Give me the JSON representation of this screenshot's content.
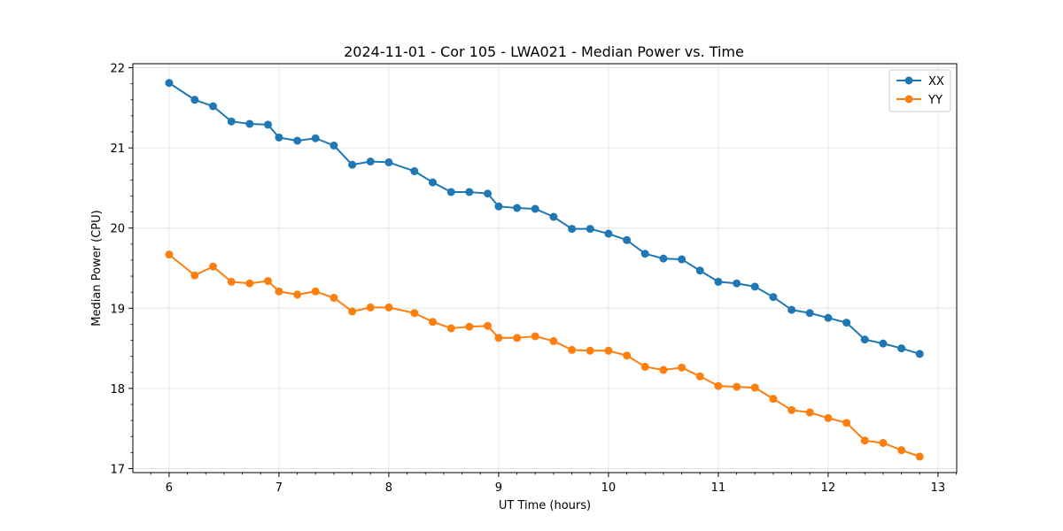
{
  "chart_data": {
    "type": "line",
    "title": "2024-11-01 - Cor 105 - LWA021 - Median Power vs. Time",
    "xlabel": "UT Time (hours)",
    "ylabel": "Median Power (CPU)",
    "xlim": [
      5.67,
      13.17
    ],
    "ylim": [
      16.95,
      22.05
    ],
    "xticks": [
      6,
      7,
      8,
      9,
      10,
      11,
      12,
      13
    ],
    "yticks": [
      17,
      18,
      19,
      20,
      21,
      22
    ],
    "grid": true,
    "legend_position": "top-right",
    "x": [
      6.0,
      6.233,
      6.4,
      6.567,
      6.733,
      6.9,
      7.0,
      7.167,
      7.333,
      7.5,
      7.667,
      7.833,
      8.0,
      8.233,
      8.4,
      8.567,
      8.733,
      8.9,
      9.0,
      9.167,
      9.333,
      9.5,
      9.667,
      9.833,
      10.0,
      10.167,
      10.333,
      10.5,
      10.667,
      10.833,
      11.0,
      11.167,
      11.333,
      11.5,
      11.667,
      11.833,
      12.0,
      12.167,
      12.333,
      12.5,
      12.667,
      12.833
    ],
    "series": [
      {
        "name": "XX",
        "color": "#1f77b4",
        "values": [
          21.81,
          21.6,
          21.52,
          21.33,
          21.3,
          21.29,
          21.13,
          21.09,
          21.12,
          21.03,
          20.79,
          20.83,
          20.82,
          20.71,
          20.57,
          20.45,
          20.45,
          20.43,
          20.27,
          20.25,
          20.24,
          20.14,
          19.99,
          19.99,
          19.93,
          19.85,
          19.68,
          19.62,
          19.61,
          19.47,
          19.33,
          19.31,
          19.27,
          19.14,
          18.98,
          18.94,
          18.88,
          18.82,
          18.61,
          18.56,
          18.5,
          18.43
        ]
      },
      {
        "name": "YY",
        "color": "#ff7f0e",
        "values": [
          19.67,
          19.41,
          19.52,
          19.33,
          19.31,
          19.34,
          19.21,
          19.17,
          19.21,
          19.13,
          18.96,
          19.01,
          19.01,
          18.94,
          18.83,
          18.75,
          18.77,
          18.78,
          18.63,
          18.63,
          18.65,
          18.59,
          18.48,
          18.47,
          18.47,
          18.41,
          18.27,
          18.23,
          18.26,
          18.15,
          18.03,
          18.02,
          18.01,
          17.87,
          17.73,
          17.7,
          17.63,
          17.57,
          17.35,
          17.32,
          17.23,
          17.15
        ]
      }
    ]
  }
}
